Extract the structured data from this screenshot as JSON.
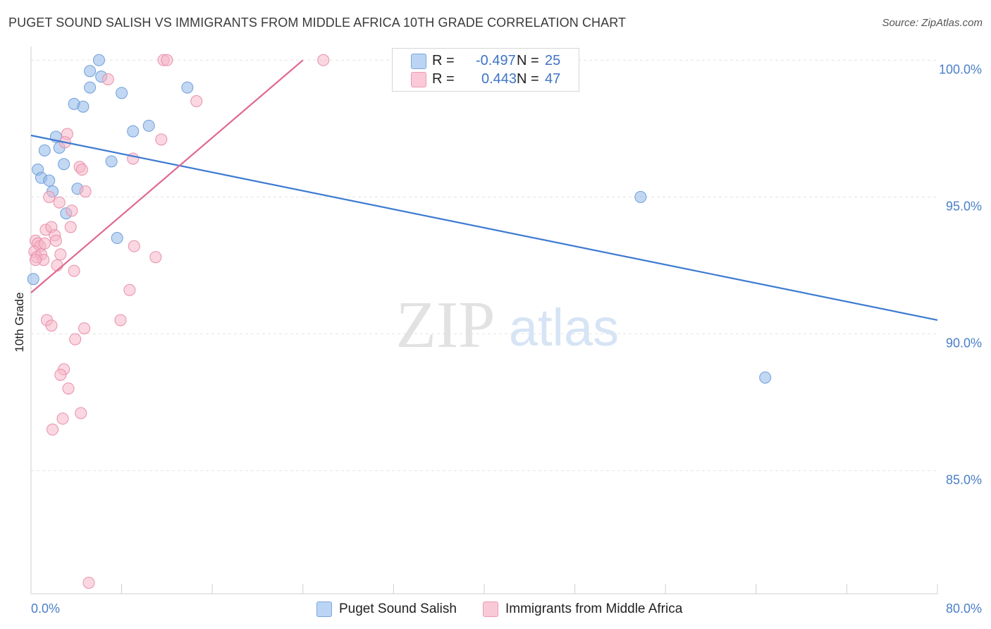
{
  "title": "PUGET SOUND SALISH VS IMMIGRANTS FROM MIDDLE AFRICA 10TH GRADE CORRELATION CHART",
  "source": "Source: ZipAtlas.com",
  "watermark": {
    "zip": "ZIP",
    "atlas": "atlas"
  },
  "legend": {
    "r_label": "R =",
    "n_label": "N =",
    "rows": [
      {
        "name": "Puget Sound Salish",
        "r": "-0.497",
        "n": "25"
      },
      {
        "name": "Immigrants from Middle Africa",
        "r": "0.443",
        "n": "47"
      }
    ]
  },
  "chart_data": {
    "type": "scatter",
    "title": "PUGET SOUND SALISH VS IMMIGRANTS FROM MIDDLE AFRICA 10TH GRADE CORRELATION CHART",
    "xlabel": "",
    "ylabel": "10th Grade",
    "xlim": [
      0,
      80
    ],
    "ylim": [
      80.5,
      100.6
    ],
    "x_tick_labels": [
      "0.0%",
      "80.0%"
    ],
    "y_ticks": [
      85,
      90,
      95,
      100
    ],
    "y_tick_labels": [
      "85.0%",
      "90.0%",
      "95.0%",
      "100.0%"
    ],
    "grid": true,
    "legend_position": "top-center",
    "series": [
      {
        "name": "Puget Sound Salish",
        "color": "#8fb6e8",
        "stroke": "#6f9fdc",
        "line_color": "#3d7ad1",
        "trend": {
          "x": [
            0,
            80
          ],
          "y": [
            97.25,
            90.5
          ]
        },
        "points": [
          {
            "x": 6.0,
            "y": 100.0
          },
          {
            "x": 5.2,
            "y": 99.6
          },
          {
            "x": 6.2,
            "y": 99.4
          },
          {
            "x": 5.2,
            "y": 99.0
          },
          {
            "x": 8.0,
            "y": 98.8
          },
          {
            "x": 13.8,
            "y": 99.0
          },
          {
            "x": 3.8,
            "y": 98.4
          },
          {
            "x": 4.6,
            "y": 98.3
          },
          {
            "x": 10.4,
            "y": 97.6
          },
          {
            "x": 9.0,
            "y": 97.4
          },
          {
            "x": 2.2,
            "y": 97.2
          },
          {
            "x": 1.2,
            "y": 96.7
          },
          {
            "x": 2.5,
            "y": 96.8
          },
          {
            "x": 2.9,
            "y": 96.2
          },
          {
            "x": 7.1,
            "y": 96.3
          },
          {
            "x": 0.6,
            "y": 96.0
          },
          {
            "x": 0.9,
            "y": 95.7
          },
          {
            "x": 1.6,
            "y": 95.6
          },
          {
            "x": 1.9,
            "y": 95.2
          },
          {
            "x": 4.1,
            "y": 95.3
          },
          {
            "x": 3.1,
            "y": 94.4
          },
          {
            "x": 7.6,
            "y": 93.5
          },
          {
            "x": 53.8,
            "y": 95.0
          },
          {
            "x": 0.2,
            "y": 92.0
          },
          {
            "x": 64.8,
            "y": 88.4
          }
        ]
      },
      {
        "name": "Immigrants from Middle Africa",
        "color": "#f6b6c8",
        "stroke": "#e98fab",
        "line_color": "#e0688f",
        "trend": {
          "x": [
            0,
            24
          ],
          "y": [
            91.5,
            100.0
          ]
        },
        "points": [
          {
            "x": 11.7,
            "y": 100.0
          },
          {
            "x": 12.0,
            "y": 100.0
          },
          {
            "x": 25.8,
            "y": 100.0
          },
          {
            "x": 6.8,
            "y": 99.3
          },
          {
            "x": 14.6,
            "y": 98.5
          },
          {
            "x": 3.2,
            "y": 97.3
          },
          {
            "x": 3.0,
            "y": 97.0
          },
          {
            "x": 11.5,
            "y": 97.1
          },
          {
            "x": 9.0,
            "y": 96.4
          },
          {
            "x": 4.3,
            "y": 96.1
          },
          {
            "x": 4.5,
            "y": 96.0
          },
          {
            "x": 4.8,
            "y": 95.2
          },
          {
            "x": 1.6,
            "y": 95.0
          },
          {
            "x": 2.5,
            "y": 94.8
          },
          {
            "x": 3.6,
            "y": 94.5
          },
          {
            "x": 1.3,
            "y": 93.8
          },
          {
            "x": 1.8,
            "y": 93.9
          },
          {
            "x": 3.5,
            "y": 93.9
          },
          {
            "x": 2.1,
            "y": 93.6
          },
          {
            "x": 0.4,
            "y": 93.4
          },
          {
            "x": 0.6,
            "y": 93.3
          },
          {
            "x": 0.8,
            "y": 93.2
          },
          {
            "x": 1.2,
            "y": 93.3
          },
          {
            "x": 2.2,
            "y": 93.4
          },
          {
            "x": 0.3,
            "y": 93.0
          },
          {
            "x": 0.5,
            "y": 92.8
          },
          {
            "x": 0.9,
            "y": 92.9
          },
          {
            "x": 1.1,
            "y": 92.7
          },
          {
            "x": 0.4,
            "y": 92.7
          },
          {
            "x": 2.6,
            "y": 92.9
          },
          {
            "x": 9.1,
            "y": 93.2
          },
          {
            "x": 11.0,
            "y": 92.8
          },
          {
            "x": 2.3,
            "y": 92.5
          },
          {
            "x": 3.8,
            "y": 92.3
          },
          {
            "x": 8.7,
            "y": 91.6
          },
          {
            "x": 1.4,
            "y": 90.5
          },
          {
            "x": 1.8,
            "y": 90.3
          },
          {
            "x": 7.9,
            "y": 90.5
          },
          {
            "x": 4.7,
            "y": 90.2
          },
          {
            "x": 3.9,
            "y": 89.8
          },
          {
            "x": 2.9,
            "y": 88.7
          },
          {
            "x": 2.6,
            "y": 88.5
          },
          {
            "x": 3.3,
            "y": 88.0
          },
          {
            "x": 4.4,
            "y": 87.1
          },
          {
            "x": 2.8,
            "y": 86.9
          },
          {
            "x": 1.9,
            "y": 86.5
          },
          {
            "x": 5.1,
            "y": 80.9
          }
        ]
      }
    ]
  }
}
